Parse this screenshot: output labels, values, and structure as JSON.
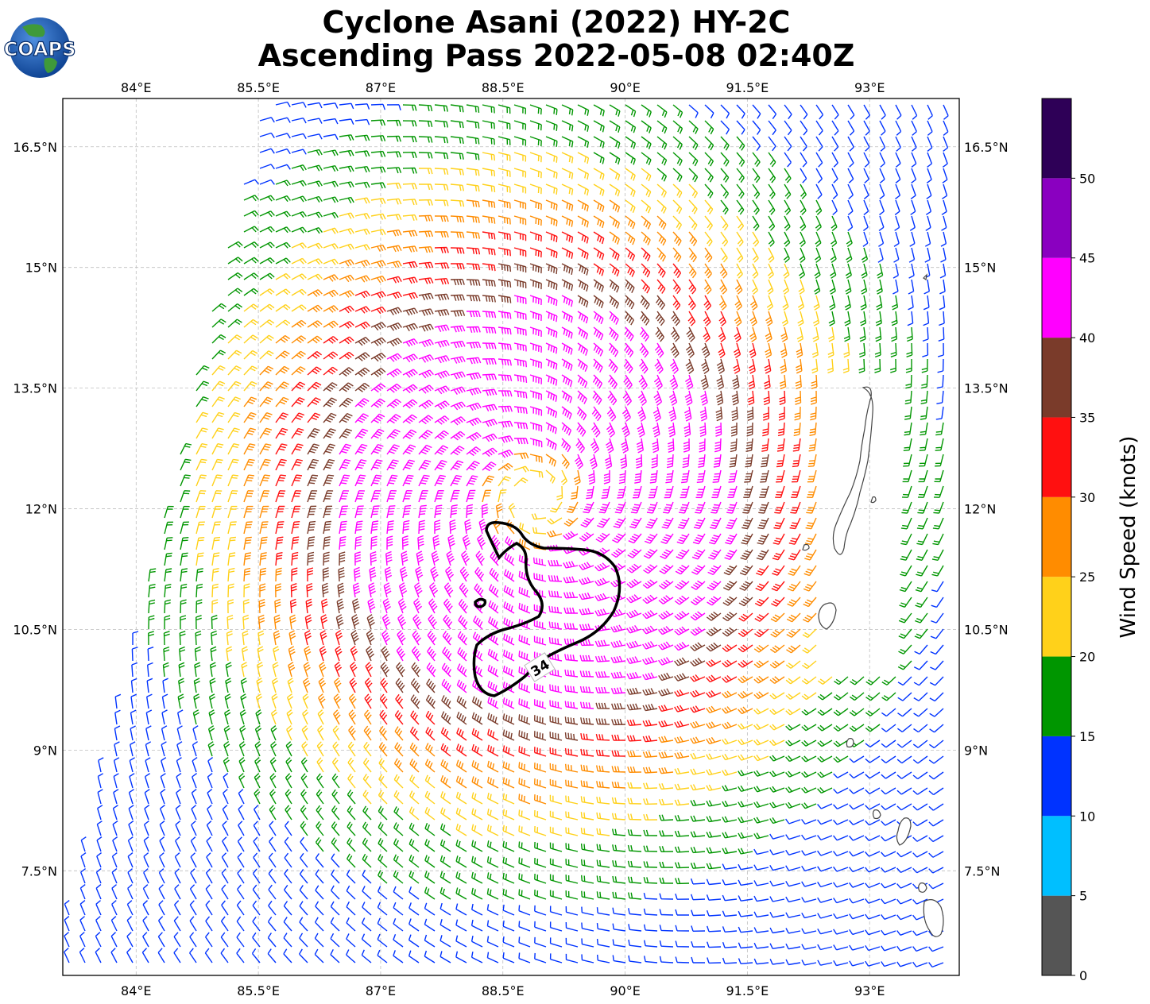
{
  "logo": {
    "text": "COAPS"
  },
  "title": {
    "line1": "Cyclone Asani (2022) HY-2C",
    "line2": "Ascending Pass 2022-05-08 02:40Z"
  },
  "map": {
    "lon_ticks": [
      "84°E",
      "85.5°E",
      "87°E",
      "88.5°E",
      "90°E",
      "91.5°E",
      "93°E"
    ],
    "lon_tick_values": [
      84,
      85.5,
      87,
      88.5,
      90,
      91.5,
      93
    ],
    "lat_ticks": [
      "16.5°N",
      "15°N",
      "13.5°N",
      "12°N",
      "10.5°N",
      "9°N",
      "7.5°N"
    ],
    "lat_tick_values": [
      16.5,
      15,
      13.5,
      12,
      10.5,
      9,
      7.5
    ],
    "lon_range": [
      83.1,
      94.1
    ],
    "lat_range": [
      6.2,
      17.1
    ],
    "gridlines": true
  },
  "storm": {
    "center_lon": 88.9,
    "center_lat": 12.15,
    "contour_label": "34"
  },
  "colorbar": {
    "label": "Wind Speed (knots)",
    "ticks": [
      "0",
      "5",
      "10",
      "15",
      "20",
      "25",
      "30",
      "35",
      "40",
      "45",
      "50"
    ],
    "bins": [
      {
        "min": 0,
        "max": 5,
        "color": "#555555"
      },
      {
        "min": 5,
        "max": 10,
        "color": "#00bfff"
      },
      {
        "min": 10,
        "max": 15,
        "color": "#0033ff"
      },
      {
        "min": 15,
        "max": 20,
        "color": "#009600"
      },
      {
        "min": 20,
        "max": 25,
        "color": "#ffd11a"
      },
      {
        "min": 25,
        "max": 30,
        "color": "#ff8c00"
      },
      {
        "min": 30,
        "max": 35,
        "color": "#ff1010"
      },
      {
        "min": 35,
        "max": 40,
        "color": "#7a3b2a"
      },
      {
        "min": 40,
        "max": 45,
        "color": "#ff00ff"
      },
      {
        "min": 45,
        "max": 50,
        "color": "#8a00c0"
      },
      {
        "min": 50,
        "max": 55,
        "color": "#2e0057"
      }
    ]
  }
}
